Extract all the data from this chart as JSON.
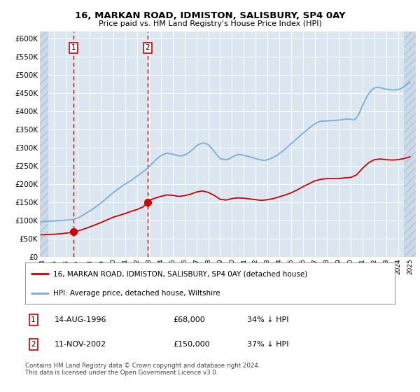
{
  "title": "16, MARKAN ROAD, IDMISTON, SALISBURY, SP4 0AY",
  "subtitle": "Price paid vs. HM Land Registry's House Price Index (HPI)",
  "sale1_price": 68000,
  "sale1_label": "14-AUG-1996",
  "sale1_pct": "34% ↓ HPI",
  "sale1_x": 1996.62,
  "sale2_price": 150000,
  "sale2_label": "11-NOV-2002",
  "sale2_pct": "37% ↓ HPI",
  "sale2_x": 2002.87,
  "legend_property": "16, MARKAN ROAD, IDMISTON, SALISBURY, SP4 0AY (detached house)",
  "legend_hpi": "HPI: Average price, detached house, Wiltshire",
  "footer": "Contains HM Land Registry data © Crown copyright and database right 2024.\nThis data is licensed under the Open Government Licence v3.0.",
  "property_color": "#cc0000",
  "hpi_color": "#7aadd4",
  "ylim": [
    0,
    620000
  ],
  "ytick_vals": [
    0,
    50000,
    100000,
    150000,
    200000,
    250000,
    300000,
    350000,
    400000,
    450000,
    500000,
    550000,
    600000
  ],
  "ylabel_ticks": [
    "£0",
    "£50K",
    "£100K",
    "£150K",
    "£200K",
    "£250K",
    "£300K",
    "£350K",
    "£400K",
    "£450K",
    "£500K",
    "£550K",
    "£600K"
  ],
  "background_color": "#ffffff",
  "plot_bg_color": "#dce6f1",
  "xlim_left": 1993.8,
  "xlim_right": 2025.5,
  "hpi_data_x": [
    1993.9,
    1994.0,
    1994.25,
    1994.5,
    1994.75,
    1995.0,
    1995.25,
    1995.5,
    1995.75,
    1996.0,
    1996.25,
    1996.5,
    1996.75,
    1997.0,
    1997.25,
    1997.5,
    1997.75,
    1998.0,
    1998.25,
    1998.5,
    1998.75,
    1999.0,
    1999.25,
    1999.5,
    1999.75,
    2000.0,
    2000.25,
    2000.5,
    2000.75,
    2001.0,
    2001.25,
    2001.5,
    2001.75,
    2002.0,
    2002.25,
    2002.5,
    2002.75,
    2003.0,
    2003.25,
    2003.5,
    2003.75,
    2004.0,
    2004.25,
    2004.5,
    2004.75,
    2005.0,
    2005.25,
    2005.5,
    2005.75,
    2006.0,
    2006.25,
    2006.5,
    2006.75,
    2007.0,
    2007.25,
    2007.5,
    2007.75,
    2008.0,
    2008.25,
    2008.5,
    2008.75,
    2009.0,
    2009.25,
    2009.5,
    2009.75,
    2010.0,
    2010.25,
    2010.5,
    2010.75,
    2011.0,
    2011.25,
    2011.5,
    2011.75,
    2012.0,
    2012.25,
    2012.5,
    2012.75,
    2013.0,
    2013.25,
    2013.5,
    2013.75,
    2014.0,
    2014.25,
    2014.5,
    2014.75,
    2015.0,
    2015.25,
    2015.5,
    2015.75,
    2016.0,
    2016.25,
    2016.5,
    2016.75,
    2017.0,
    2017.25,
    2017.5,
    2017.75,
    2018.0,
    2018.25,
    2018.5,
    2018.75,
    2019.0,
    2019.25,
    2019.5,
    2019.75,
    2020.0,
    2020.25,
    2020.5,
    2020.75,
    2021.0,
    2021.25,
    2021.5,
    2021.75,
    2022.0,
    2022.25,
    2022.5,
    2022.75,
    2023.0,
    2023.25,
    2023.5,
    2023.75,
    2024.0,
    2024.25,
    2024.5,
    2024.75,
    2025.0
  ],
  "hpi_data_y": [
    96000,
    96500,
    97000,
    97500,
    98000,
    98500,
    99000,
    99500,
    100000,
    100500,
    101000,
    102000,
    104000,
    107000,
    111000,
    116000,
    121000,
    126000,
    131000,
    137000,
    143000,
    149000,
    156000,
    163000,
    170000,
    177000,
    183000,
    189000,
    195000,
    200000,
    205000,
    210000,
    216000,
    222000,
    228000,
    234000,
    240000,
    248000,
    256000,
    264000,
    272000,
    278000,
    282000,
    285000,
    284000,
    282000,
    280000,
    278000,
    277000,
    280000,
    284000,
    290000,
    297000,
    305000,
    310000,
    313000,
    312000,
    308000,
    300000,
    290000,
    279000,
    270000,
    268000,
    267000,
    269000,
    274000,
    278000,
    281000,
    281000,
    279000,
    277000,
    275000,
    273000,
    270000,
    268000,
    266000,
    265000,
    267000,
    270000,
    274000,
    278000,
    284000,
    290000,
    297000,
    304000,
    311000,
    318000,
    326000,
    333000,
    340000,
    347000,
    354000,
    360000,
    366000,
    370000,
    373000,
    373000,
    374000,
    374000,
    375000,
    375000,
    376000,
    377000,
    378000,
    379000,
    378000,
    376000,
    382000,
    396000,
    415000,
    432000,
    447000,
    458000,
    464000,
    466000,
    465000,
    463000,
    461000,
    460000,
    459000,
    459000,
    460000,
    463000,
    468000,
    474000,
    480000
  ],
  "prop_data_x": [
    1993.9,
    1994.5,
    1995.0,
    1995.5,
    1996.0,
    1996.62,
    1996.62,
    1997.0,
    1997.5,
    1998.0,
    1998.5,
    1999.0,
    1999.5,
    2000.0,
    2000.5,
    2001.0,
    2001.5,
    2002.0,
    2002.5,
    2002.87,
    2002.87,
    2003.0,
    2003.5,
    2004.0,
    2004.5,
    2005.0,
    2005.5,
    2006.0,
    2006.5,
    2007.0,
    2007.5,
    2008.0,
    2008.5,
    2009.0,
    2009.5,
    2010.0,
    2010.5,
    2011.0,
    2011.5,
    2012.0,
    2012.5,
    2013.0,
    2013.5,
    2014.0,
    2014.5,
    2015.0,
    2015.5,
    2016.0,
    2016.5,
    2017.0,
    2017.5,
    2018.0,
    2018.5,
    2019.0,
    2019.5,
    2020.0,
    2020.5,
    2021.0,
    2021.5,
    2022.0,
    2022.5,
    2023.0,
    2023.5,
    2024.0,
    2024.5,
    2025.0
  ],
  "prop_data_y": [
    60500,
    61000,
    62000,
    63000,
    65000,
    68000,
    68000,
    71000,
    76000,
    82000,
    88000,
    95000,
    102000,
    109000,
    114000,
    119000,
    125000,
    130000,
    137000,
    150000,
    150000,
    155000,
    161000,
    166000,
    170000,
    169000,
    166000,
    168000,
    172000,
    178000,
    181000,
    177000,
    169000,
    158000,
    156000,
    160000,
    162000,
    161000,
    159000,
    157000,
    155000,
    157000,
    160000,
    165000,
    170000,
    176000,
    184000,
    193000,
    201000,
    209000,
    213000,
    215000,
    215000,
    215000,
    217000,
    218000,
    225000,
    243000,
    258000,
    267000,
    269000,
    267000,
    266000,
    267000,
    270000,
    275000
  ]
}
